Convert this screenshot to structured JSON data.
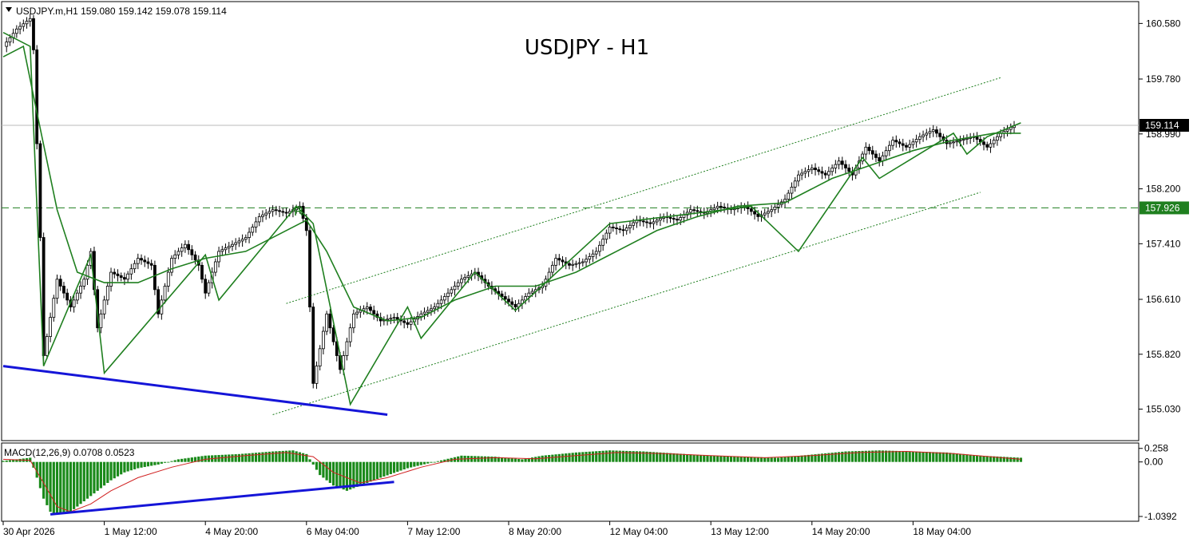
{
  "symbol_line": {
    "arrow": "triangle-down-icon",
    "text": "USDJPY.m,H1  159.080 159.142 159.078 159.114"
  },
  "chart_title": "USDJPY - H1",
  "colors": {
    "candle": "#000000",
    "zigzag": "#1f7f1f",
    "ma": "#1f7f1f",
    "channel": "#1f7f1f",
    "support": "#1515d8",
    "price_tag_bg": "#000000",
    "level_tag_bg": "#1f7f1f",
    "macd_hist": "#1a8a1a",
    "macd_signal": "#d02020"
  },
  "price_axis": {
    "ticks": [
      "160.580",
      "159.780",
      "158.990",
      "158.200",
      "157.410",
      "156.610",
      "155.820",
      "155.030"
    ]
  },
  "current_price_tag": "159.114",
  "resistance_tag": "157.926",
  "resistance_marker": "R",
  "macd": {
    "label": "MACD(12,26,9) 0.0708 0.0523",
    "ticks": [
      "0.258",
      "0.00",
      "-1.0392"
    ]
  },
  "time_axis": {
    "labels": [
      "30 Apr 2026",
      "1 May 12:00",
      "4 May 20:00",
      "6 May 04:00",
      "7 May 12:00",
      "8 May 20:00",
      "12 May 04:00",
      "13 May 12:00",
      "14 May 20:00",
      "18 May 04:00"
    ]
  },
  "chart_data": {
    "type": "candlestick",
    "title": "USDJPY - H1",
    "instrument": "USDJPY.m",
    "timeframe": "H1",
    "ohlc_header": {
      "open": 159.08,
      "high": 159.142,
      "low": 159.078,
      "close": 159.114
    },
    "ylim": [
      154.6,
      160.9
    ],
    "current_price": 159.114,
    "resistance_level": 157.926,
    "price_path": [
      [
        0,
        160.25
      ],
      [
        4,
        160.5
      ],
      [
        8,
        160.65
      ],
      [
        9,
        160.2
      ],
      [
        11,
        157.5
      ],
      [
        12,
        155.8
      ],
      [
        16,
        156.9
      ],
      [
        20,
        156.5
      ],
      [
        24,
        156.9
      ],
      [
        26,
        157.3
      ],
      [
        28,
        156.2
      ],
      [
        32,
        157.0
      ],
      [
        36,
        156.9
      ],
      [
        40,
        157.2
      ],
      [
        44,
        157.1
      ],
      [
        46,
        156.4
      ],
      [
        50,
        157.2
      ],
      [
        54,
        157.4
      ],
      [
        58,
        157.1
      ],
      [
        60,
        156.7
      ],
      [
        64,
        157.3
      ],
      [
        68,
        157.4
      ],
      [
        72,
        157.5
      ],
      [
        76,
        157.8
      ],
      [
        80,
        157.9
      ],
      [
        84,
        157.85
      ],
      [
        88,
        157.95
      ],
      [
        90,
        157.6
      ],
      [
        92,
        155.4
      ],
      [
        96,
        156.4
      ],
      [
        100,
        155.6
      ],
      [
        104,
        156.4
      ],
      [
        108,
        156.5
      ],
      [
        112,
        156.3
      ],
      [
        116,
        156.35
      ],
      [
        120,
        156.25
      ],
      [
        124,
        156.4
      ],
      [
        128,
        156.5
      ],
      [
        132,
        156.7
      ],
      [
        136,
        156.9
      ],
      [
        140,
        157.0
      ],
      [
        144,
        156.8
      ],
      [
        148,
        156.65
      ],
      [
        152,
        156.5
      ],
      [
        156,
        156.7
      ],
      [
        160,
        156.8
      ],
      [
        164,
        157.2
      ],
      [
        168,
        157.1
      ],
      [
        172,
        157.15
      ],
      [
        176,
        157.3
      ],
      [
        180,
        157.65
      ],
      [
        184,
        157.6
      ],
      [
        188,
        157.75
      ],
      [
        192,
        157.7
      ],
      [
        196,
        157.8
      ],
      [
        200,
        157.75
      ],
      [
        204,
        157.9
      ],
      [
        208,
        157.85
      ],
      [
        212,
        157.95
      ],
      [
        216,
        157.9
      ],
      [
        220,
        157.95
      ],
      [
        224,
        157.8
      ],
      [
        228,
        157.9
      ],
      [
        232,
        158.05
      ],
      [
        236,
        158.4
      ],
      [
        240,
        158.5
      ],
      [
        244,
        158.4
      ],
      [
        248,
        158.6
      ],
      [
        252,
        158.4
      ],
      [
        256,
        158.8
      ],
      [
        260,
        158.6
      ],
      [
        264,
        158.9
      ],
      [
        268,
        158.8
      ],
      [
        272,
        158.95
      ],
      [
        276,
        159.05
      ],
      [
        280,
        158.85
      ],
      [
        284,
        158.9
      ],
      [
        288,
        158.95
      ],
      [
        292,
        158.8
      ],
      [
        296,
        159.0
      ],
      [
        300,
        159.11
      ]
    ],
    "support_line_upper": [
      [
        0,
        155.65
      ],
      [
        114,
        154.95
      ]
    ],
    "channel_lower": [
      [
        80,
        154.95
      ],
      [
        290,
        158.15
      ]
    ],
    "channel_upper": [
      [
        84,
        156.55
      ],
      [
        296,
        159.8
      ]
    ],
    "zigzag": [
      [
        0,
        160.45
      ],
      [
        8,
        160.25
      ],
      [
        12,
        155.65
      ],
      [
        26,
        157.25
      ],
      [
        30,
        155.55
      ],
      [
        60,
        157.25
      ],
      [
        64,
        156.6
      ],
      [
        87,
        157.95
      ],
      [
        92,
        157.7
      ],
      [
        103,
        155.1
      ],
      [
        120,
        156.5
      ],
      [
        124,
        156.05
      ],
      [
        140,
        157.0
      ],
      [
        152,
        156.45
      ],
      [
        180,
        157.7
      ],
      [
        214,
        157.9
      ],
      [
        222,
        157.95
      ],
      [
        236,
        157.3
      ],
      [
        255,
        158.65
      ],
      [
        260,
        158.35
      ],
      [
        282,
        159.0
      ],
      [
        286,
        158.7
      ],
      [
        292,
        158.95
      ],
      [
        302,
        159.15
      ]
    ],
    "moving_average": [
      [
        0,
        160.1
      ],
      [
        6,
        160.25
      ],
      [
        10,
        159.3
      ],
      [
        16,
        157.9
      ],
      [
        22,
        157.0
      ],
      [
        30,
        156.85
      ],
      [
        40,
        156.85
      ],
      [
        50,
        157.05
      ],
      [
        60,
        157.2
      ],
      [
        72,
        157.3
      ],
      [
        82,
        157.55
      ],
      [
        90,
        157.75
      ],
      [
        96,
        157.3
      ],
      [
        104,
        156.5
      ],
      [
        114,
        156.3
      ],
      [
        124,
        156.35
      ],
      [
        134,
        156.6
      ],
      [
        146,
        156.8
      ],
      [
        158,
        156.8
      ],
      [
        170,
        157.0
      ],
      [
        182,
        157.3
      ],
      [
        194,
        157.6
      ],
      [
        206,
        157.8
      ],
      [
        218,
        157.95
      ],
      [
        232,
        158.0
      ],
      [
        246,
        158.35
      ],
      [
        258,
        158.55
      ],
      [
        270,
        158.75
      ],
      [
        282,
        158.9
      ],
      [
        294,
        159.0
      ],
      [
        302,
        159.0
      ]
    ],
    "macd_histogram": [
      [
        0,
        0.02
      ],
      [
        4,
        0.05
      ],
      [
        8,
        0.08
      ],
      [
        10,
        -0.3
      ],
      [
        12,
        -0.7
      ],
      [
        14,
        -0.95
      ],
      [
        16,
        -1.0
      ],
      [
        20,
        -0.95
      ],
      [
        24,
        -0.75
      ],
      [
        28,
        -0.55
      ],
      [
        32,
        -0.35
      ],
      [
        36,
        -0.2
      ],
      [
        40,
        -0.12
      ],
      [
        46,
        -0.05
      ],
      [
        52,
        0.05
      ],
      [
        60,
        0.12
      ],
      [
        70,
        0.15
      ],
      [
        80,
        0.2
      ],
      [
        86,
        0.22
      ],
      [
        90,
        0.15
      ],
      [
        94,
        -0.25
      ],
      [
        98,
        -0.45
      ],
      [
        102,
        -0.55
      ],
      [
        106,
        -0.45
      ],
      [
        112,
        -0.3
      ],
      [
        120,
        -0.12
      ],
      [
        128,
        0.0
      ],
      [
        136,
        0.12
      ],
      [
        146,
        0.1
      ],
      [
        154,
        0.05
      ],
      [
        160,
        0.12
      ],
      [
        170,
        0.18
      ],
      [
        180,
        0.22
      ],
      [
        190,
        0.2
      ],
      [
        200,
        0.16
      ],
      [
        210,
        0.12
      ],
      [
        220,
        0.1
      ],
      [
        230,
        0.08
      ],
      [
        240,
        0.14
      ],
      [
        250,
        0.2
      ],
      [
        260,
        0.22
      ],
      [
        270,
        0.2
      ],
      [
        280,
        0.18
      ],
      [
        290,
        0.12
      ],
      [
        302,
        0.08
      ]
    ],
    "macd_signal": [
      [
        0,
        0.05
      ],
      [
        8,
        0.03
      ],
      [
        12,
        -0.4
      ],
      [
        16,
        -0.85
      ],
      [
        20,
        -0.95
      ],
      [
        26,
        -0.8
      ],
      [
        32,
        -0.55
      ],
      [
        40,
        -0.3
      ],
      [
        50,
        -0.1
      ],
      [
        60,
        0.05
      ],
      [
        72,
        0.12
      ],
      [
        84,
        0.18
      ],
      [
        92,
        0.1
      ],
      [
        98,
        -0.2
      ],
      [
        106,
        -0.4
      ],
      [
        114,
        -0.3
      ],
      [
        124,
        -0.1
      ],
      [
        134,
        0.05
      ],
      [
        146,
        0.08
      ],
      [
        158,
        0.06
      ],
      [
        170,
        0.12
      ],
      [
        182,
        0.18
      ],
      [
        196,
        0.16
      ],
      [
        210,
        0.12
      ],
      [
        226,
        0.08
      ],
      [
        240,
        0.12
      ],
      [
        254,
        0.18
      ],
      [
        268,
        0.2
      ],
      [
        282,
        0.16
      ],
      [
        302,
        0.05
      ]
    ],
    "macd_ylim": [
      -1.1,
      0.33
    ],
    "macd_support_line": [
      [
        14,
        -1.0
      ],
      [
        116,
        -0.38
      ]
    ],
    "x_tick_bars": [
      0,
      30,
      60,
      90,
      120,
      150,
      180,
      210,
      240,
      270
    ]
  }
}
